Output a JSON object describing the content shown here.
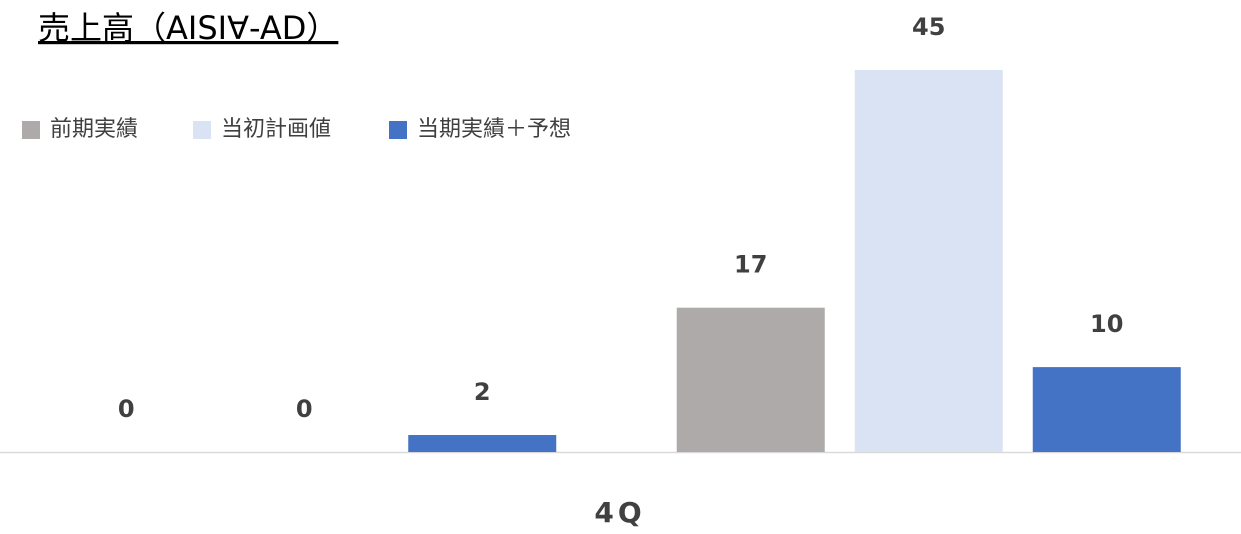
{
  "chart_data": {
    "type": "bar",
    "title": "売上高（AISI∀-AD）",
    "categories": [
      null,
      null
    ],
    "x_label": "4Q",
    "series": [
      {
        "name": "前期実績",
        "color": "#aeaaaa",
        "values": [
          0,
          17
        ]
      },
      {
        "name": "当初計画値",
        "color": "#dae3f3",
        "values": [
          0,
          45
        ]
      },
      {
        "name": "当期実績＋予想",
        "color": "#4472c4",
        "values": [
          2,
          10
        ]
      }
    ],
    "ylim": [
      0,
      45
    ],
    "legend": "top-left"
  }
}
